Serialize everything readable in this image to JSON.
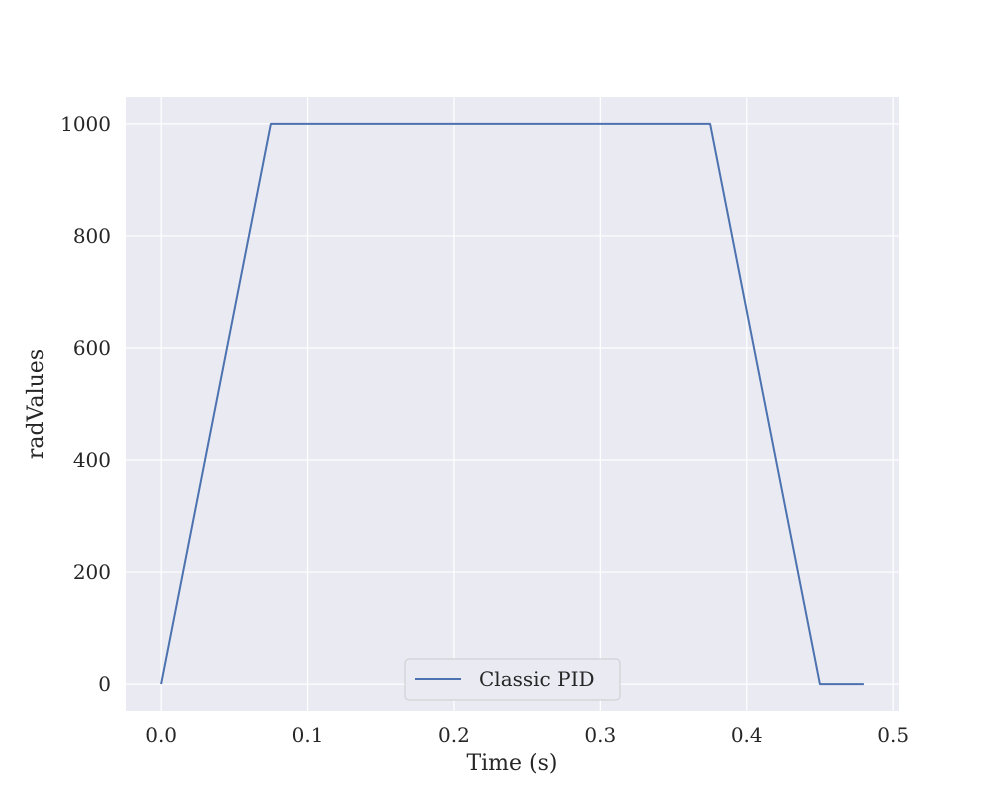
{
  "chart_data": {
    "type": "line",
    "title": "",
    "xlabel": "Time (s)",
    "ylabel": "radValues",
    "xlim": [
      -0.024,
      0.504
    ],
    "ylim": [
      -48,
      1048
    ],
    "xticks": [
      0.0,
      0.1,
      0.2,
      0.3,
      0.4,
      0.5
    ],
    "xtick_labels": [
      "0.0",
      "0.1",
      "0.2",
      "0.3",
      "0.4",
      "0.5"
    ],
    "yticks": [
      0,
      200,
      400,
      600,
      800,
      1000
    ],
    "ytick_labels": [
      "0",
      "200",
      "400",
      "600",
      "800",
      "1000"
    ],
    "grid": true,
    "legend_position": "lower center",
    "series": [
      {
        "name": "Classic PID",
        "color": "#4c72b0",
        "x": [
          0.0,
          0.075,
          0.375,
          0.45,
          0.48
        ],
        "y": [
          0,
          1000,
          1000,
          0,
          0
        ]
      }
    ]
  },
  "colors": {
    "plot_background": "#eaeaf2",
    "grid": "#ffffff",
    "text": "#262626"
  }
}
